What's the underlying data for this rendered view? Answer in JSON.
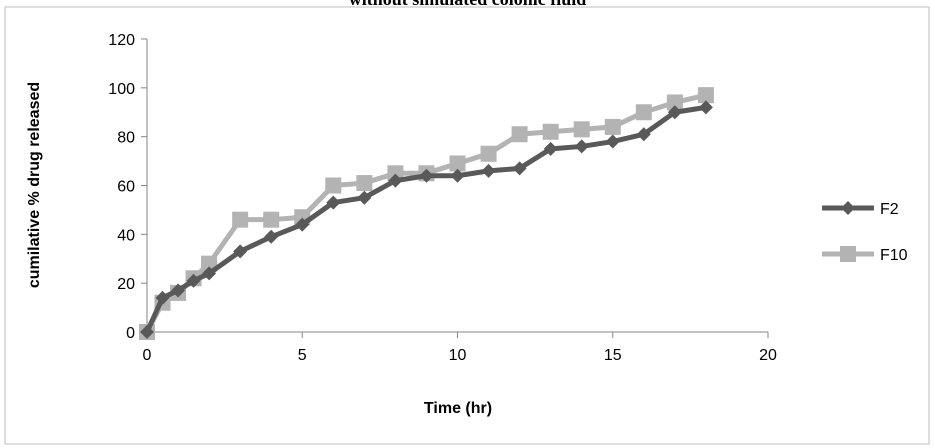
{
  "chart_data": {
    "type": "line",
    "title": "without simulated colonic fluid",
    "xlabel": "Time (hr)",
    "ylabel": "cumilative % drug released",
    "xlim": [
      0,
      20
    ],
    "ylim": [
      0,
      120
    ],
    "xticks": [
      "0",
      "5",
      "10",
      "15",
      "20"
    ],
    "yticks": [
      "0",
      "20",
      "40",
      "60",
      "80",
      "100",
      "120"
    ],
    "grid": false,
    "legend_position": "right",
    "series": [
      {
        "name": "F2",
        "color": "#595959",
        "marker": "diamond",
        "x": [
          0,
          0.5,
          1,
          1.5,
          2,
          3,
          4,
          5,
          6,
          7,
          8,
          9,
          10,
          11,
          12,
          13,
          14,
          15,
          16,
          17,
          18
        ],
        "y": [
          0,
          14,
          17,
          21,
          24,
          33,
          39,
          44,
          53,
          55,
          62,
          64,
          64,
          66,
          67,
          75,
          76,
          78,
          81,
          90,
          92
        ]
      },
      {
        "name": "F10",
        "color": "#b3b3b3",
        "marker": "square",
        "x": [
          0,
          0.5,
          1,
          1.5,
          2,
          3,
          4,
          5,
          6,
          7,
          8,
          9,
          10,
          11,
          12,
          13,
          14,
          15,
          16,
          17,
          18
        ],
        "y": [
          0,
          12,
          16,
          22,
          28,
          46,
          46,
          47,
          60,
          61,
          65,
          65,
          69,
          73,
          81,
          82,
          83,
          84,
          90,
          94,
          97
        ]
      }
    ]
  }
}
